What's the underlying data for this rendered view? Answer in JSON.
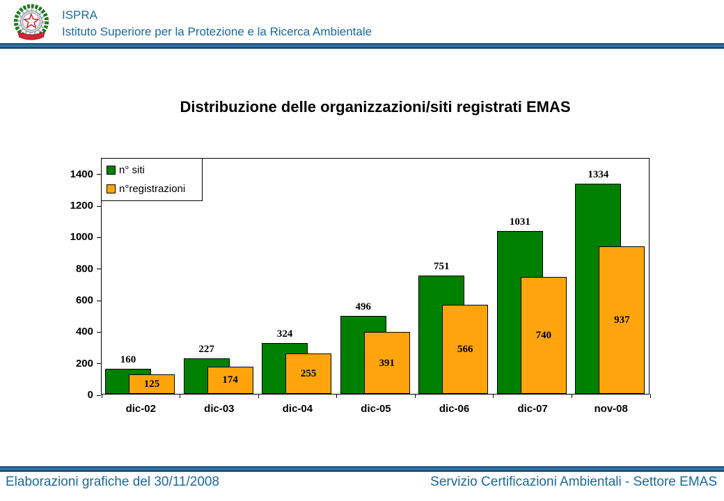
{
  "header": {
    "org_acronym": "ISPRA",
    "org_name": "Istituto Superiore per la Protezione e la Ricerca Ambientale",
    "logo_name": "italian-republic-emblem",
    "accent_color": "#19699e"
  },
  "title": "Distribuzione delle organizzazioni/siti registrati EMAS",
  "chart_data": {
    "type": "bar",
    "title": "Distribuzione delle organizzazioni/siti registrati EMAS",
    "categories": [
      "dic-02",
      "dic-03",
      "dic-04",
      "dic-05",
      "dic-06",
      "dic-07",
      "nov-08"
    ],
    "series": [
      {
        "name": "n° siti",
        "color": "#008000",
        "values": [
          160,
          227,
          324,
          496,
          751,
          1031,
          1334
        ],
        "label_position": "outside-end"
      },
      {
        "name": "n°registrazioni",
        "color": "#FFA40C",
        "values": [
          125,
          174,
          255,
          391,
          566,
          740,
          937
        ],
        "label_position": "center"
      }
    ],
    "xlabel": "",
    "ylabel": "",
    "ylim": [
      0,
      1500
    ],
    "ytick_step": 200,
    "ytick_labeled_max": 1400,
    "grid": false,
    "legend_position": "top-left-inside",
    "bar_overlap": "series 2 overlaps series 1 by ~50%, drawn in front",
    "plot_border": "#000000",
    "plot_background": "#ffffff"
  },
  "footer": {
    "left": "Elaborazioni grafiche del 30/11/2008",
    "right": "Servizio Certificazioni Ambientali - Settore EMAS"
  }
}
